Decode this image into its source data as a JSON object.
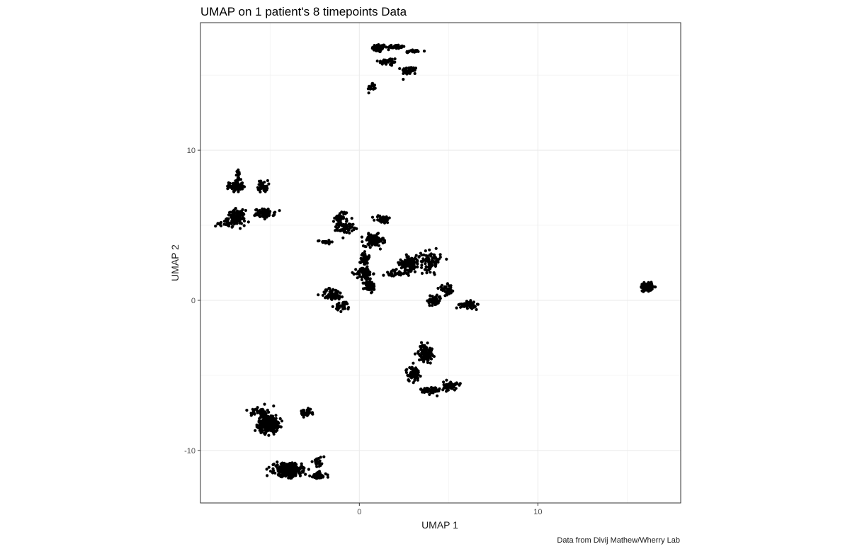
{
  "chart_data": {
    "type": "scatter",
    "title": "UMAP on 1 patient's 8 timepoints Data",
    "xlabel": "UMAP 1",
    "ylabel": "UMAP 2",
    "caption": "Data from Divij Mathew/Wherry Lab",
    "xlim": [
      -8.9,
      18.0
    ],
    "ylim": [
      -13.5,
      18.5
    ],
    "x_ticks": [
      0,
      10
    ],
    "x_tick_labels": [
      "0",
      "10"
    ],
    "y_ticks": [
      -10,
      0,
      10
    ],
    "y_tick_labels": [
      "-10",
      "0",
      "10"
    ],
    "x_minor_gridlines": [
      -5,
      5,
      15
    ],
    "y_minor_gridlines": [
      -5,
      5,
      15
    ],
    "grid": true,
    "legend": "none",
    "point_color": "#000000",
    "clusters": [
      {
        "center": [
          1.1,
          16.8
        ],
        "spread": [
          0.35,
          0.25
        ],
        "n": 60
      },
      {
        "center": [
          2.0,
          16.9
        ],
        "spread": [
          0.5,
          0.12
        ],
        "n": 40
      },
      {
        "center": [
          3.0,
          16.6
        ],
        "spread": [
          0.5,
          0.1
        ],
        "n": 20
      },
      {
        "center": [
          1.6,
          15.9
        ],
        "spread": [
          0.5,
          0.25
        ],
        "n": 40
      },
      {
        "center": [
          2.8,
          15.3
        ],
        "spread": [
          0.4,
          0.25
        ],
        "n": 40
      },
      {
        "center": [
          0.7,
          14.2
        ],
        "spread": [
          0.2,
          0.3
        ],
        "n": 20
      },
      {
        "center": [
          -6.9,
          7.6
        ],
        "spread": [
          0.35,
          0.35
        ],
        "n": 80
      },
      {
        "center": [
          -6.8,
          8.3
        ],
        "spread": [
          0.12,
          0.35
        ],
        "n": 15
      },
      {
        "center": [
          -5.4,
          7.6
        ],
        "spread": [
          0.25,
          0.35
        ],
        "n": 40
      },
      {
        "center": [
          -6.9,
          5.5
        ],
        "spread": [
          0.45,
          0.45
        ],
        "n": 130
      },
      {
        "center": [
          -5.3,
          5.8
        ],
        "spread": [
          0.5,
          0.25
        ],
        "n": 80
      },
      {
        "center": [
          -7.6,
          5.1
        ],
        "spread": [
          0.4,
          0.15
        ],
        "n": 20
      },
      {
        "center": [
          -1.0,
          5.5
        ],
        "spread": [
          0.35,
          0.45
        ],
        "n": 40
      },
      {
        "center": [
          -0.8,
          4.8
        ],
        "spread": [
          0.4,
          0.3
        ],
        "n": 50
      },
      {
        "center": [
          0.8,
          4.0
        ],
        "spread": [
          0.5,
          0.35
        ],
        "n": 130
      },
      {
        "center": [
          1.3,
          5.4
        ],
        "spread": [
          0.4,
          0.25
        ],
        "n": 40
      },
      {
        "center": [
          -1.9,
          3.9
        ],
        "spread": [
          0.4,
          0.1
        ],
        "n": 20
      },
      {
        "center": [
          0.3,
          2.8
        ],
        "spread": [
          0.2,
          0.5
        ],
        "n": 40
      },
      {
        "center": [
          0.3,
          1.8
        ],
        "spread": [
          0.4,
          0.35
        ],
        "n": 80
      },
      {
        "center": [
          0.6,
          0.9
        ],
        "spread": [
          0.3,
          0.4
        ],
        "n": 50
      },
      {
        "center": [
          -1.5,
          0.4
        ],
        "spread": [
          0.6,
          0.35
        ],
        "n": 60
      },
      {
        "center": [
          -0.9,
          -0.4
        ],
        "spread": [
          0.4,
          0.3
        ],
        "n": 30
      },
      {
        "center": [
          2.8,
          2.5
        ],
        "spread": [
          0.5,
          0.45
        ],
        "n": 110
      },
      {
        "center": [
          4.0,
          2.6
        ],
        "spread": [
          0.5,
          0.6
        ],
        "n": 90
      },
      {
        "center": [
          2.0,
          1.8
        ],
        "spread": [
          0.6,
          0.2
        ],
        "n": 40
      },
      {
        "center": [
          4.9,
          0.7
        ],
        "spread": [
          0.4,
          0.3
        ],
        "n": 40
      },
      {
        "center": [
          4.2,
          0.0
        ],
        "spread": [
          0.35,
          0.35
        ],
        "n": 60
      },
      {
        "center": [
          6.1,
          -0.3
        ],
        "spread": [
          0.4,
          0.2
        ],
        "n": 60
      },
      {
        "center": [
          16.1,
          0.9
        ],
        "spread": [
          0.3,
          0.22
        ],
        "n": 140
      },
      {
        "center": [
          3.7,
          -3.5
        ],
        "spread": [
          0.35,
          0.5
        ],
        "n": 110
      },
      {
        "center": [
          3.0,
          -4.9
        ],
        "spread": [
          0.35,
          0.45
        ],
        "n": 60
      },
      {
        "center": [
          4.0,
          -6.0
        ],
        "spread": [
          0.5,
          0.25
        ],
        "n": 60
      },
      {
        "center": [
          5.1,
          -5.7
        ],
        "spread": [
          0.35,
          0.25
        ],
        "n": 60
      },
      {
        "center": [
          -5.1,
          -8.2
        ],
        "spread": [
          0.5,
          0.5
        ],
        "n": 320
      },
      {
        "center": [
          -5.6,
          -7.4
        ],
        "spread": [
          0.4,
          0.3
        ],
        "n": 40
      },
      {
        "center": [
          -3.0,
          -7.5
        ],
        "spread": [
          0.35,
          0.2
        ],
        "n": 40
      },
      {
        "center": [
          -4.0,
          -11.3
        ],
        "spread": [
          0.7,
          0.4
        ],
        "n": 320
      },
      {
        "center": [
          -2.3,
          -11.7
        ],
        "spread": [
          0.4,
          0.22
        ],
        "n": 60
      },
      {
        "center": [
          -2.3,
          -10.8
        ],
        "spread": [
          0.3,
          0.3
        ],
        "n": 20
      }
    ]
  }
}
